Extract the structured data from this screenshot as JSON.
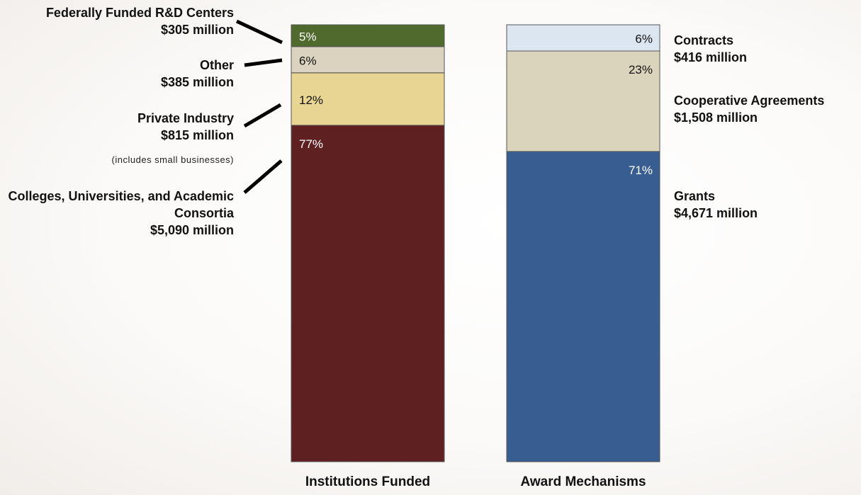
{
  "chart_data": [
    {
      "type": "bar",
      "stacked": true,
      "xlabel": "Institutions Funded",
      "unit": "%",
      "ylim": [
        0,
        100
      ],
      "segments": [
        {
          "name": "Colleges, Universities, and Academic Consortia",
          "amount": "$5,090 million",
          "value": 77,
          "label": "77%",
          "color": "#5f2022",
          "text_color": "#ffffff"
        },
        {
          "name": "Private Industry",
          "amount": "$815 million",
          "note": "(includes small businesses)",
          "value": 12,
          "label": "12%",
          "color": "#e8d593",
          "text_color": "#111111"
        },
        {
          "name": "Other",
          "amount": "$385 million",
          "value": 6,
          "label": "6%",
          "color": "#dbd3bf",
          "text_color": "#111111"
        },
        {
          "name": "Federally Funded R&D Centers",
          "amount": "$305 million",
          "value": 5,
          "label": "5%",
          "color": "#4f6a2c",
          "text_color": "#ffffff"
        }
      ]
    },
    {
      "type": "bar",
      "stacked": true,
      "xlabel": "Award Mechanisms",
      "unit": "%",
      "ylim": [
        0,
        100
      ],
      "segments": [
        {
          "name": "Grants",
          "amount": "$4,671 million",
          "value": 71,
          "label": "71%",
          "color": "#375d91",
          "text_color": "#ffffff"
        },
        {
          "name": "Cooperative Agreements",
          "amount": "$1,508 million",
          "value": 23,
          "label": "23%",
          "color": "#dbd4bd",
          "text_color": "#111111"
        },
        {
          "name": "Contracts",
          "amount": "$416 million",
          "value": 6,
          "label": "6%",
          "color": "#dce6f1",
          "text_color": "#111111"
        }
      ]
    }
  ]
}
